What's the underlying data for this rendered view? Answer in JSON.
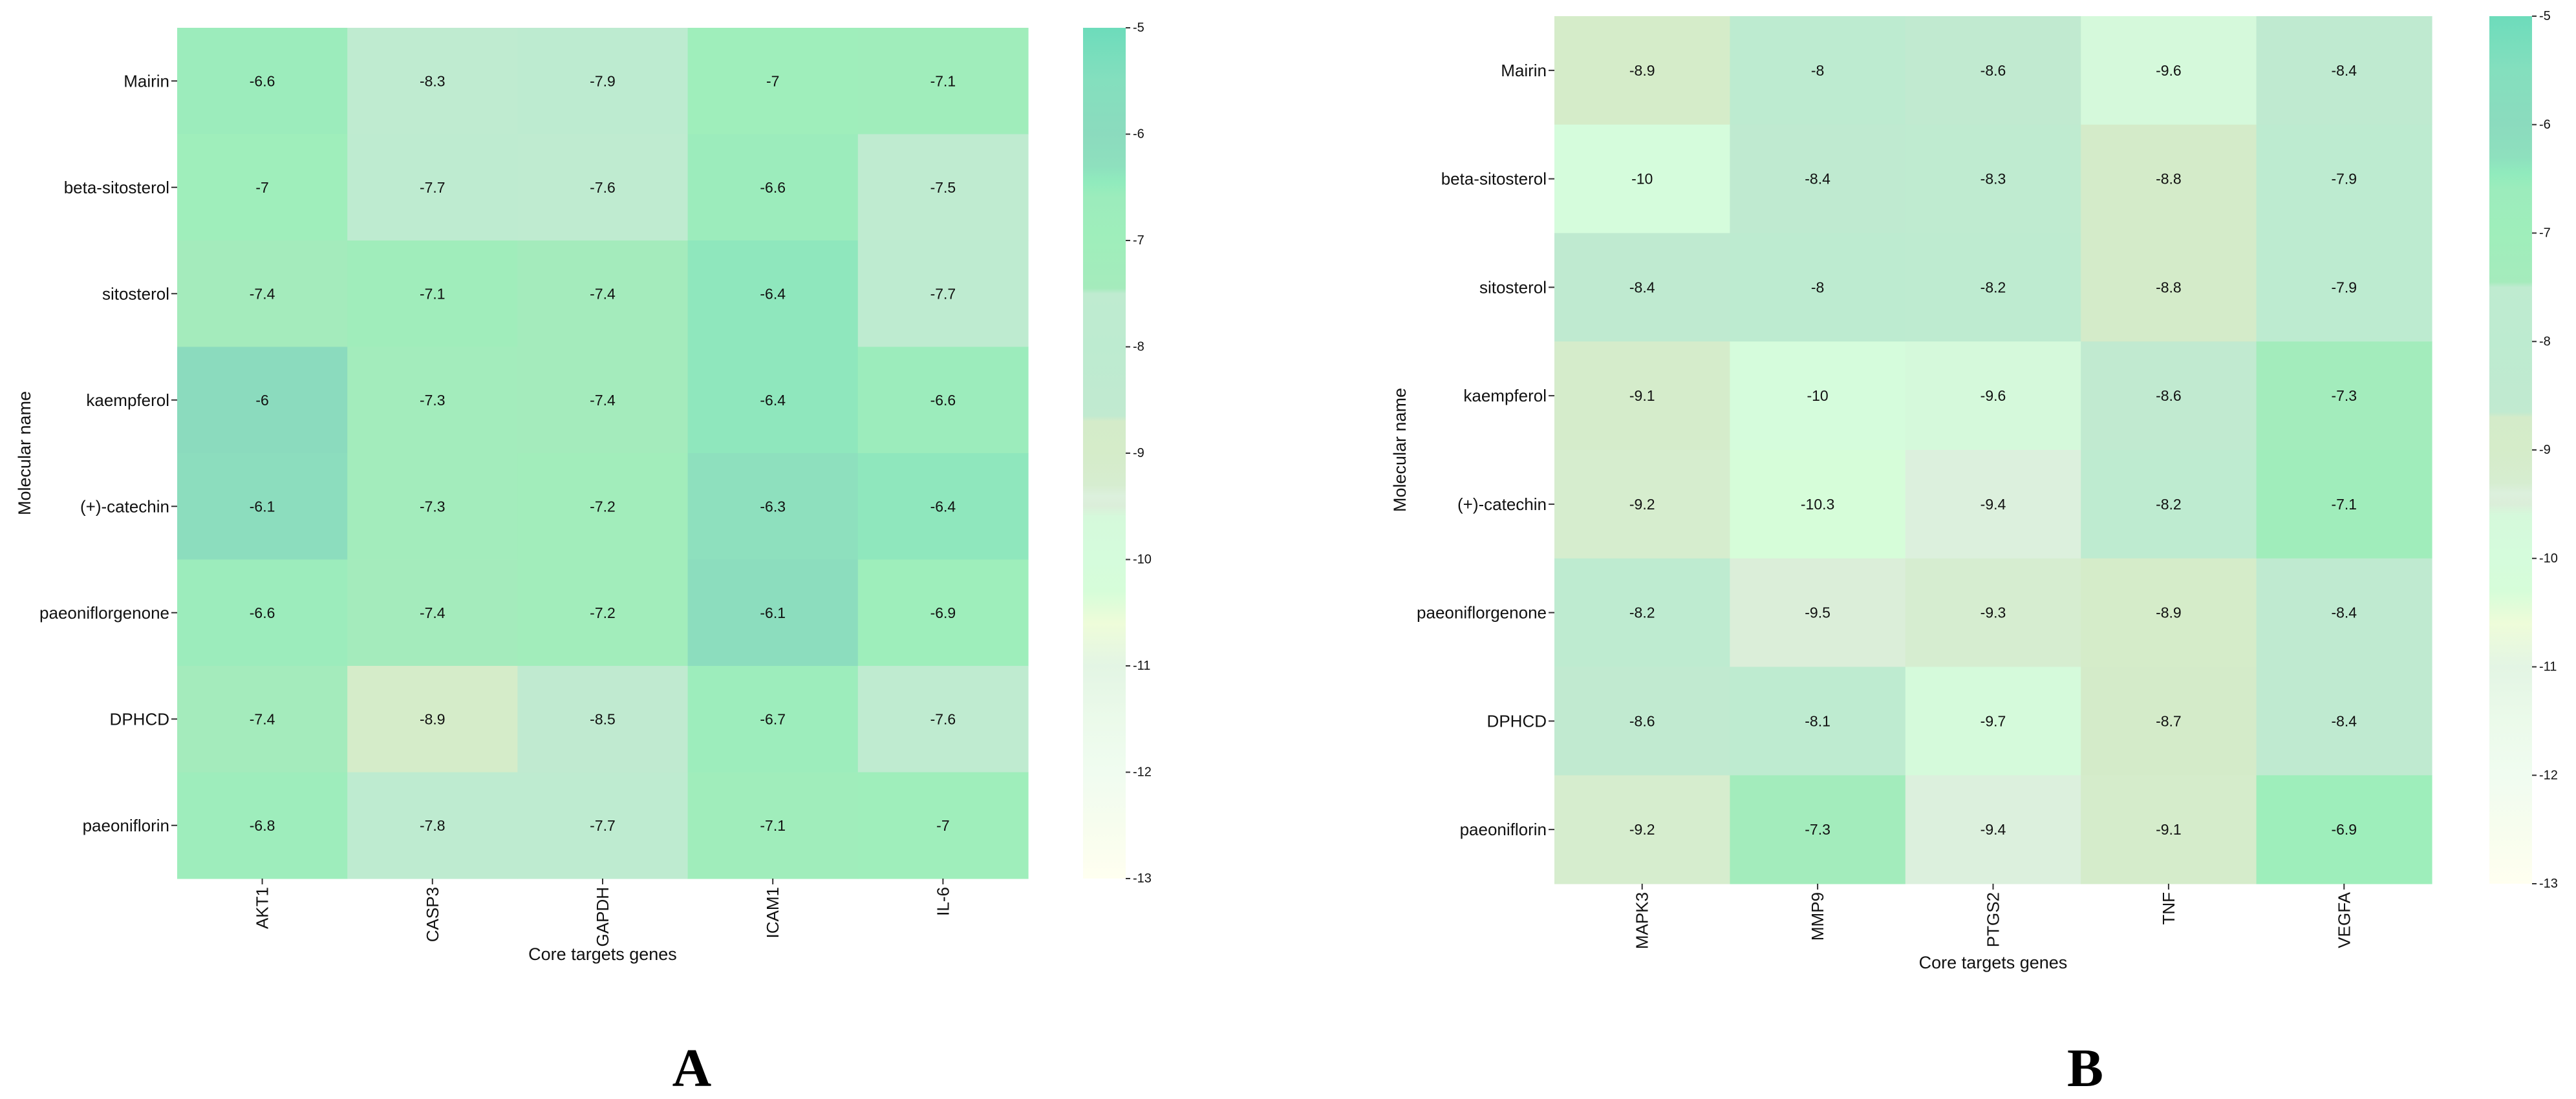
{
  "colorscale": [
    {
      "value": -13,
      "color": "#fffff0"
    },
    {
      "value": -12.5,
      "color": "#f7fdee"
    },
    {
      "value": -12,
      "color": "#f0fcf0"
    },
    {
      "value": -11.5,
      "color": "#ebfaea"
    },
    {
      "value": -11,
      "color": "#e3f5e4"
    },
    {
      "value": -10.6,
      "color": "#eefcd9"
    },
    {
      "value": -10.3,
      "color": "#d6fdd9"
    },
    {
      "value": -10,
      "color": "#d5fcdc"
    },
    {
      "value": -9.6,
      "color": "#d5f9db"
    },
    {
      "value": -9.5,
      "color": "#dbeed9"
    },
    {
      "value": -9.4,
      "color": "#dcf0dd"
    },
    {
      "value": -9.3,
      "color": "#d6edd0"
    },
    {
      "value": -9,
      "color": "#d5ecc9"
    },
    {
      "value": -8.7,
      "color": "#d4ebc9"
    },
    {
      "value": -8.65,
      "color": "#c1ead0"
    },
    {
      "value": -8,
      "color": "#bdebd0"
    },
    {
      "value": -7.5,
      "color": "#bfebd0"
    },
    {
      "value": -7.45,
      "color": "#a5ebbc"
    },
    {
      "value": -7,
      "color": "#9feebb"
    },
    {
      "value": -6.6,
      "color": "#9cecbc"
    },
    {
      "value": -6.45,
      "color": "#90ebbd"
    },
    {
      "value": -6.3,
      "color": "#8ee0be"
    },
    {
      "value": -6,
      "color": "#8bdbbe"
    },
    {
      "value": -5.5,
      "color": "#84dfbe"
    },
    {
      "value": -5,
      "color": "#6ddcbb"
    }
  ],
  "chart_data": [
    {
      "type": "heatmap",
      "panel": "A",
      "xlabel": "Core targets genes",
      "ylabel": "Molecular name",
      "columns": [
        "AKT1",
        "CASP3",
        "GAPDH",
        "ICAM1",
        "IL-6"
      ],
      "rows": [
        "Mairin",
        "beta-sitosterol",
        "sitosterol",
        "kaempferol",
        "(+)-catechin",
        "paeoniflorgenone",
        "DPHCD",
        "paeoniflorin"
      ],
      "values": [
        [
          -6.6,
          -8.3,
          -7.9,
          -7,
          -7.1
        ],
        [
          -7,
          -7.7,
          -7.6,
          -6.6,
          -7.5
        ],
        [
          -7.4,
          -7.1,
          -7.4,
          -6.4,
          -7.7
        ],
        [
          -6,
          -7.3,
          -7.4,
          -6.4,
          -6.6
        ],
        [
          -6.1,
          -7.3,
          -7.2,
          -6.3,
          -6.4
        ],
        [
          -6.6,
          -7.4,
          -7.2,
          -6.1,
          -6.9
        ],
        [
          -7.4,
          -8.9,
          -8.5,
          -6.7,
          -7.6
        ],
        [
          -6.8,
          -7.8,
          -7.7,
          -7.1,
          -7
        ]
      ],
      "colorbar": {
        "min": -13,
        "max": -5,
        "ticks": [
          -5,
          -6,
          -7,
          -8,
          -9,
          -10,
          -11,
          -12,
          -13
        ]
      }
    },
    {
      "type": "heatmap",
      "panel": "B",
      "xlabel": "Core targets genes",
      "ylabel": "Molecular name",
      "columns": [
        "MAPK3",
        "MMP9",
        "PTGS2",
        "TNF",
        "VEGFA"
      ],
      "rows": [
        "Mairin",
        "beta-sitosterol",
        "sitosterol",
        "kaempferol",
        "(+)-catechin",
        "paeoniflorgenone",
        "DPHCD",
        "paeoniflorin"
      ],
      "values": [
        [
          -8.9,
          -8,
          -8.6,
          -9.6,
          -8.4
        ],
        [
          -10,
          -8.4,
          -8.3,
          -8.8,
          -7.9
        ],
        [
          -8.4,
          -8,
          -8.2,
          -8.8,
          -7.9
        ],
        [
          -9.1,
          -10,
          -9.6,
          -8.6,
          -7.3
        ],
        [
          -9.2,
          -10.3,
          -9.4,
          -8.2,
          -7.1
        ],
        [
          -8.2,
          -9.5,
          -9.3,
          -8.9,
          -8.4
        ],
        [
          -8.6,
          -8.1,
          -9.7,
          -8.7,
          -8.4
        ],
        [
          -9.2,
          -7.3,
          -9.4,
          -9.1,
          -6.9
        ]
      ],
      "colorbar": {
        "min": -13,
        "max": -5,
        "ticks": [
          -5,
          -6,
          -7,
          -8,
          -9,
          -10,
          -11,
          -12,
          -13
        ]
      }
    }
  ]
}
